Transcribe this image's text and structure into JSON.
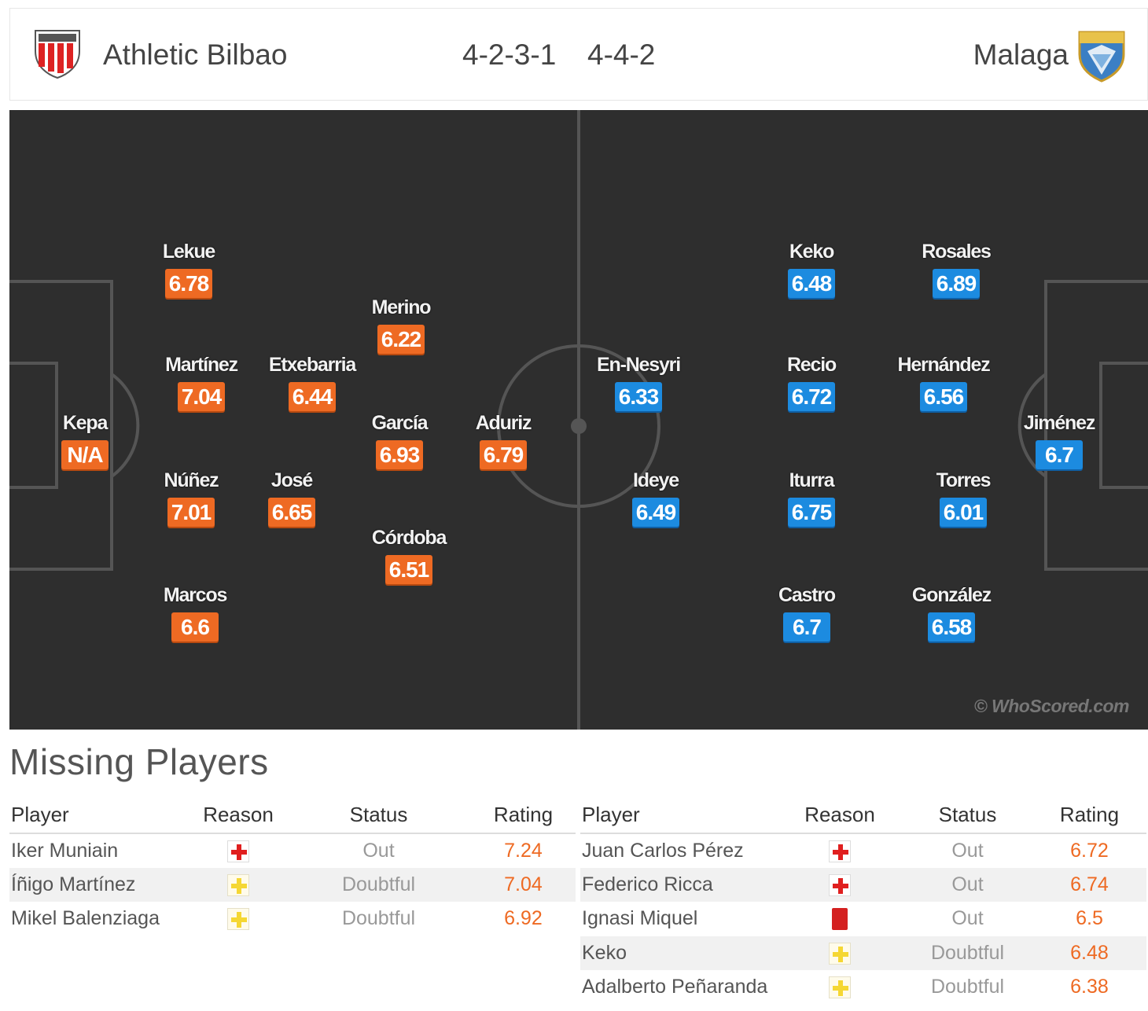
{
  "header": {
    "home_team": "Athletic Bilbao",
    "home_formation": "4-2-3-1",
    "away_formation": "4-4-2",
    "away_team": "Malaga",
    "home_crest_icon": "athletic-bilbao-crest",
    "away_crest_icon": "malaga-crest"
  },
  "colors": {
    "home_rating": "#ee6a23",
    "away_rating": "#1c8be0",
    "pitch": "#2e2e2e",
    "missing_rating": "#ee6a23"
  },
  "pitch": {
    "watermark": "© WhoScored.com",
    "home_players": [
      {
        "name": "Kepa",
        "rating": "N/A"
      },
      {
        "name": "Lekue",
        "rating": "6.78"
      },
      {
        "name": "Martínez",
        "rating": "7.04"
      },
      {
        "name": "Núñez",
        "rating": "7.01"
      },
      {
        "name": "Marcos",
        "rating": "6.6"
      },
      {
        "name": "Etxebarria",
        "rating": "6.44"
      },
      {
        "name": "José",
        "rating": "6.65"
      },
      {
        "name": "Merino",
        "rating": "6.22"
      },
      {
        "name": "García",
        "rating": "6.93"
      },
      {
        "name": "Córdoba",
        "rating": "6.51"
      },
      {
        "name": "Aduriz",
        "rating": "6.79"
      }
    ],
    "away_players": [
      {
        "name": "En-Nesyri",
        "rating": "6.33"
      },
      {
        "name": "Ideye",
        "rating": "6.49"
      },
      {
        "name": "Keko",
        "rating": "6.48"
      },
      {
        "name": "Recio",
        "rating": "6.72"
      },
      {
        "name": "Iturra",
        "rating": "6.75"
      },
      {
        "name": "Castro",
        "rating": "6.7"
      },
      {
        "name": "Rosales",
        "rating": "6.89"
      },
      {
        "name": "Hernández",
        "rating": "6.56"
      },
      {
        "name": "Torres",
        "rating": "6.01"
      },
      {
        "name": "González",
        "rating": "6.58"
      },
      {
        "name": "Jiménez",
        "rating": "6.7"
      }
    ]
  },
  "missing": {
    "title": "Missing Players",
    "columns": [
      "Player",
      "Reason",
      "Status",
      "Rating"
    ],
    "home": [
      {
        "player": "Iker Muniain",
        "reason_icon": "injury-icon",
        "status": "Out",
        "rating": "7.24"
      },
      {
        "player": "Íñigo Martínez",
        "reason_icon": "doubtful-icon",
        "status": "Doubtful",
        "rating": "7.04"
      },
      {
        "player": "Mikel Balenziaga",
        "reason_icon": "doubtful-icon",
        "status": "Doubtful",
        "rating": "6.92"
      }
    ],
    "away": [
      {
        "player": "Juan Carlos Pérez",
        "reason_icon": "injury-icon",
        "status": "Out",
        "rating": "6.72"
      },
      {
        "player": "Federico Ricca",
        "reason_icon": "injury-icon",
        "status": "Out",
        "rating": "6.74"
      },
      {
        "player": "Ignasi Miquel",
        "reason_icon": "red-card-icon",
        "status": "Out",
        "rating": "6.5"
      },
      {
        "player": "Keko",
        "reason_icon": "doubtful-icon",
        "status": "Doubtful",
        "rating": "6.48"
      },
      {
        "player": "Adalberto Peñaranda",
        "reason_icon": "doubtful-icon",
        "status": "Doubtful",
        "rating": "6.38"
      }
    ]
  }
}
